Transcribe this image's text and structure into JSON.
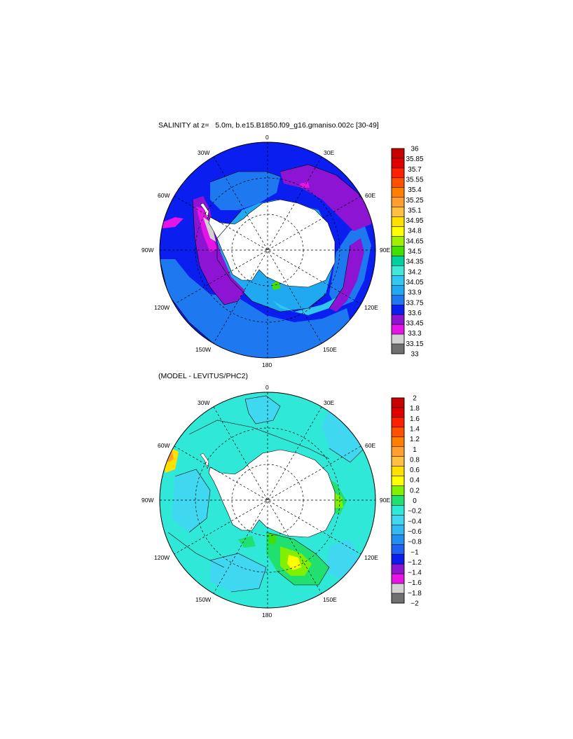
{
  "panels": [
    {
      "title": "SALINITY at z=   5.0m, b.e15.B1850.f09_g16.gmaniso.002c [30-49]",
      "lon_labels": [
        "0",
        "30E",
        "60E",
        "90E",
        "120E",
        "150E",
        "180",
        "150W",
        "120W",
        "90W",
        "60W",
        "30W"
      ],
      "colorbar": {
        "labels": [
          "36",
          "35.85",
          "35.7",
          "35.55",
          "35.4",
          "35.25",
          "35.1",
          "34.95",
          "34.8",
          "34.65",
          "34.5",
          "34.35",
          "34.2",
          "34.05",
          "33.9",
          "33.75",
          "33.6",
          "33.45",
          "33.3",
          "33.15",
          "33"
        ],
        "colors": [
          "#c80000",
          "#e00000",
          "#ff2000",
          "#ff5000",
          "#ff8000",
          "#ff9f30",
          "#ffc040",
          "#ffe000",
          "#ffff00",
          "#a0f000",
          "#40e000",
          "#00d0a0",
          "#40e8d8",
          "#30c8f0",
          "#20a8f0",
          "#1e78f0",
          "#0a1ef0",
          "#8c14d2",
          "#e614e6",
          "#d2d2d2",
          "#707070"
        ]
      }
    },
    {
      "title": "(MODEL - LEVITUS/PHC2)",
      "lon_labels": [
        "0",
        "30E",
        "60E",
        "90E",
        "120E",
        "150E",
        "180",
        "150W",
        "120W",
        "90W",
        "60W",
        "30W"
      ],
      "colorbar": {
        "labels": [
          "2",
          "1.8",
          "1.6",
          "1.4",
          "1.2",
          "1",
          "0.8",
          "0.6",
          "0.4",
          "0.2",
          "0",
          "−0.2",
          "−0.4",
          "−0.6",
          "−0.8",
          "−1",
          "−1.2",
          "−1.4",
          "−1.6",
          "−1.8",
          "−2"
        ],
        "colors": [
          "#c80000",
          "#e00000",
          "#ff2000",
          "#ff5000",
          "#ff8000",
          "#ff9f30",
          "#ffc040",
          "#ffe000",
          "#ffff00",
          "#80f000",
          "#20e070",
          "#30e8d8",
          "#40d8f0",
          "#30b8f0",
          "#2090f0",
          "#1e60f0",
          "#0a1ef0",
          "#8c14d2",
          "#e614e6",
          "#d2d2d2",
          "#707070"
        ]
      }
    }
  ]
}
